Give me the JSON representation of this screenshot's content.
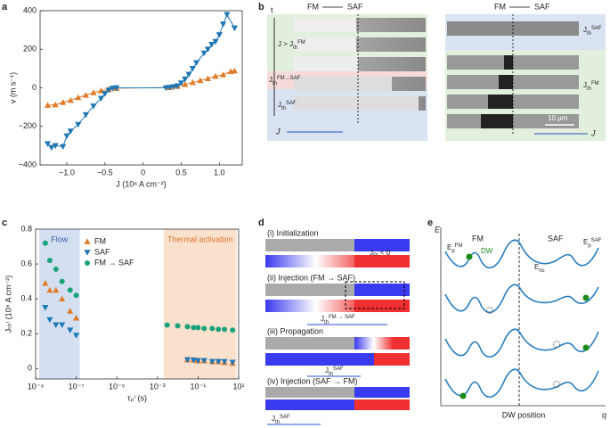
{
  "panel_labels": [
    "a",
    "b",
    "c",
    "d",
    "e"
  ],
  "chart_data": [
    {
      "type": "scatter",
      "xlabel": "J (10⁸ A cm⁻²)",
      "ylabel": "v (m s⁻¹)",
      "xlim": [
        -1.35,
        1.3
      ],
      "ylim": [
        -400,
        400
      ],
      "xticks": [
        {
          "value": -1,
          "label": "−1.0"
        },
        {
          "value": -0.5,
          "label": "−0.5"
        },
        0,
        {
          "value": 0.5,
          "label": "0.5"
        },
        {
          "value": 1,
          "label": "1.0"
        }
      ],
      "yticks": [
        {
          "value": -400,
          "label": "−400"
        },
        {
          "value": -200,
          "label": "−200"
        },
        0,
        200,
        400
      ],
      "series": [
        {
          "color": "#e07b2a",
          "marker": "triangle-up",
          "x": [
            -1.25,
            -1.15,
            -1.05,
            -0.95,
            -0.85,
            -0.75,
            -0.65,
            -0.55,
            -0.45,
            -0.35,
            0.35,
            0.45,
            0.55,
            0.65,
            0.75,
            0.85,
            0.95,
            1.05,
            1.15,
            1.2
          ],
          "values": [
            -90,
            -88,
            -75,
            -65,
            -50,
            -38,
            -25,
            -15,
            -8,
            -2,
            2,
            8,
            18,
            28,
            38,
            48,
            60,
            68,
            85,
            88
          ]
        },
        {
          "color": "#1f77b4",
          "marker": "triangle-down",
          "x": [
            -1.25,
            -1.2,
            -1.15,
            -1.05,
            -1.0,
            -0.95,
            -0.85,
            -0.75,
            -0.65,
            -0.55,
            -0.5,
            -0.45,
            -0.4,
            -0.35,
            0.3,
            0.35,
            0.4,
            0.45,
            0.5,
            0.55,
            0.6,
            0.65,
            0.7,
            0.8,
            0.85,
            0.9,
            0.95,
            1.0,
            1.05,
            1.1,
            1.2
          ],
          "values": [
            -290,
            -310,
            -300,
            -305,
            -250,
            -225,
            -190,
            -140,
            -95,
            -55,
            -30,
            -12,
            -3,
            0,
            0,
            2,
            5,
            10,
            25,
            45,
            70,
            100,
            130,
            180,
            200,
            225,
            240,
            275,
            330,
            380,
            310
          ]
        }
      ]
    },
    {
      "type": "scatter",
      "log_x": true,
      "xlabel": "τₚⁱ (s)",
      "ylabel": "Jₜₕⁱ (10⁸ A cm⁻²)",
      "xlim": [
        1e-09,
        10
      ],
      "ylim": [
        -0.06,
        0.8
      ],
      "xticks": [
        {
          "value": 1e-09,
          "label": "10⁻⁹"
        },
        {
          "value": 1e-07,
          "label": "10⁻⁷"
        },
        {
          "value": 1e-05,
          "label": "10⁻⁵"
        },
        {
          "value": 0.001,
          "label": "10⁻³"
        },
        {
          "value": 0.1,
          "label": "10⁻¹"
        },
        {
          "value": 10,
          "label": "10¹"
        }
      ],
      "yticks": [
        0,
        0.2,
        0.4,
        0.6,
        0.8
      ],
      "regions": [
        {
          "label": "Flow",
          "xlim": [
            1.5e-09,
            1.5e-07
          ],
          "color": "#c9d8ef"
        },
        {
          "label": "Thermal activation",
          "xlim": [
            0.002,
            8
          ],
          "color": "#f9d9c2"
        }
      ],
      "series": [
        {
          "name": "FM",
          "color": "#e07b2a",
          "marker": "triangle-up",
          "x": [
            3e-09,
            5e-09,
            1e-08,
            2e-08,
            5e-08,
            1e-07,
            0.03,
            0.06,
            0.1,
            0.2,
            0.5,
            1,
            2,
            5
          ],
          "values": [
            0.49,
            0.45,
            0.45,
            0.4,
            0.33,
            0.29,
            0.05,
            0.05,
            0.045,
            0.045,
            0.04,
            0.04,
            0.035,
            0.03
          ]
        },
        {
          "name": "SAF",
          "color": "#1f77b4",
          "marker": "triangle-down",
          "x": [
            3e-09,
            5e-09,
            1e-08,
            2e-08,
            5e-08,
            1e-07,
            0.03,
            0.06,
            0.1,
            0.2,
            0.5,
            1,
            2,
            5
          ],
          "values": [
            0.35,
            0.28,
            0.25,
            0.25,
            0.22,
            0.19,
            0.05,
            0.048,
            0.045,
            0.045,
            0.04,
            0.04,
            0.04,
            0.035
          ]
        },
        {
          "name": "FM → SAF",
          "color": "#1aa37a",
          "marker": "circle",
          "x": [
            3e-09,
            5e-09,
            1e-08,
            2e-08,
            5e-08,
            1e-07,
            0.003,
            0.01,
            0.03,
            0.06,
            0.1,
            0.2,
            0.5,
            1,
            2,
            5
          ],
          "values": [
            0.72,
            0.62,
            0.57,
            0.5,
            0.45,
            0.42,
            0.25,
            0.245,
            0.24,
            0.235,
            0.235,
            0.23,
            0.23,
            0.225,
            0.225,
            0.22
          ]
        }
      ]
    }
  ],
  "panel_b": {
    "left_from": "FM",
    "left_to": "SAF",
    "time": "t",
    "l1": {
      "prefix": "J > ",
      "base": "J",
      "sub": "th",
      "sup": "FM"
    },
    "l2": {
      "base": "J",
      "sub": "th",
      "sup": "FM→SAF"
    },
    "l3": {
      "base": "J",
      "sub": "th",
      "sup": "SAF"
    },
    "left_current": "J",
    "right_from": "FM",
    "right_to": "SAF",
    "r1": {
      "base": "J",
      "sub": "th",
      "sup": "SAF"
    },
    "r2": {
      "base": "J",
      "sub": "th",
      "sup": "FM"
    },
    "scale": "10 µm",
    "right_current": "J"
  },
  "panel_d": {
    "steps": [
      "(i) Initialization",
      "(ii) Injection (FM → SAF)",
      "(iii) Propagation",
      "(iv) Injection (SAF → FM)"
    ],
    "jex": "Jₑₓ < 0",
    "j2": {
      "base": "J",
      "sub": "th",
      "sup": "FM → SAF"
    },
    "j3": {
      "base": "J",
      "sub": "th",
      "sup": "SAF"
    },
    "j4": {
      "base": "J",
      "sub": "th",
      "sup": "SAF"
    }
  },
  "panel_e": {
    "energy": "E",
    "fm": "FM",
    "saf": "SAF",
    "dw": "DW",
    "epfm": {
      "base": "E",
      "sub": "p",
      "sup": "FM"
    },
    "epsaf": {
      "base": "E",
      "sub": "p",
      "sup": "SAF"
    },
    "enc": {
      "base": "E",
      "sub": "nc"
    },
    "xlabel": "DW position",
    "q": "q"
  }
}
